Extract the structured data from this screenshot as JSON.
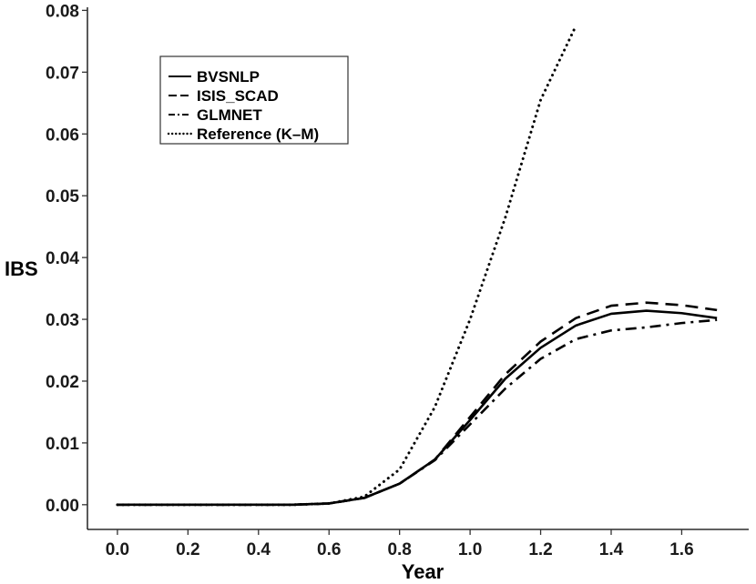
{
  "chart_data": {
    "type": "line",
    "xlabel": "Year",
    "ylabel": "IBS",
    "xlim": [
      -0.085,
      1.79
    ],
    "ylim": [
      -0.004,
      0.0805
    ],
    "x_ticks": [
      0.0,
      0.2,
      0.4,
      0.6,
      0.8,
      1.0,
      1.2,
      1.4,
      1.6
    ],
    "x_tick_labels": [
      "0.0",
      "0.2",
      "0.4",
      "0.6",
      "0.8",
      "1.0",
      "1.2",
      "1.4",
      "1.6"
    ],
    "y_ticks": [
      0.0,
      0.01,
      0.02,
      0.03,
      0.04,
      0.05,
      0.06,
      0.07,
      0.08
    ],
    "y_tick_labels": [
      "0.00",
      "0.01",
      "0.02",
      "0.03",
      "0.04",
      "0.05",
      "0.06",
      "0.07",
      "0.08"
    ],
    "grid": false,
    "legend_position": "top-left",
    "series": [
      {
        "name": "BVSNLP",
        "style": "solid",
        "x": [
          0.0,
          0.1,
          0.2,
          0.3,
          0.4,
          0.5,
          0.6,
          0.7,
          0.8,
          0.9,
          1.0,
          1.1,
          1.2,
          1.3,
          1.4,
          1.5,
          1.6,
          1.7
        ],
        "y": [
          0.0,
          0.0,
          0.0,
          0.0,
          0.0,
          0.0,
          0.0002,
          0.0011,
          0.0034,
          0.0073,
          0.0137,
          0.0204,
          0.0254,
          0.029,
          0.0309,
          0.0314,
          0.031,
          0.0302
        ]
      },
      {
        "name": "ISIS_SCAD",
        "style": "dashed",
        "x": [
          0.0,
          0.1,
          0.2,
          0.3,
          0.4,
          0.5,
          0.6,
          0.7,
          0.8,
          0.9,
          1.0,
          1.1,
          1.2,
          1.3,
          1.4,
          1.5,
          1.6,
          1.7
        ],
        "y": [
          0.0,
          0.0,
          0.0,
          0.0,
          0.0,
          0.0,
          0.0002,
          0.0011,
          0.0034,
          0.0073,
          0.0142,
          0.0211,
          0.0264,
          0.0302,
          0.0322,
          0.0327,
          0.0323,
          0.0315
        ]
      },
      {
        "name": "GLMNET",
        "style": "dashdot",
        "x": [
          0.0,
          0.1,
          0.2,
          0.3,
          0.4,
          0.5,
          0.6,
          0.7,
          0.8,
          0.9,
          1.0,
          1.1,
          1.2,
          1.3,
          1.4,
          1.5,
          1.6,
          1.7
        ],
        "y": [
          0.0,
          0.0,
          0.0,
          0.0,
          0.0,
          0.0,
          0.0002,
          0.0011,
          0.0034,
          0.0072,
          0.013,
          0.0188,
          0.0236,
          0.0268,
          0.0282,
          0.0287,
          0.0294,
          0.0299
        ]
      },
      {
        "name": "Reference (K–M)",
        "style": "dotted",
        "x": [
          0.0,
          0.1,
          0.2,
          0.3,
          0.4,
          0.5,
          0.6,
          0.7,
          0.8,
          0.9,
          1.0,
          1.1,
          1.2,
          1.3
        ],
        "y": [
          0.0,
          0.0,
          0.0,
          0.0,
          0.0,
          0.0,
          0.0002,
          0.0013,
          0.0057,
          0.0158,
          0.03,
          0.0465,
          0.0655,
          0.0775
        ]
      }
    ]
  }
}
